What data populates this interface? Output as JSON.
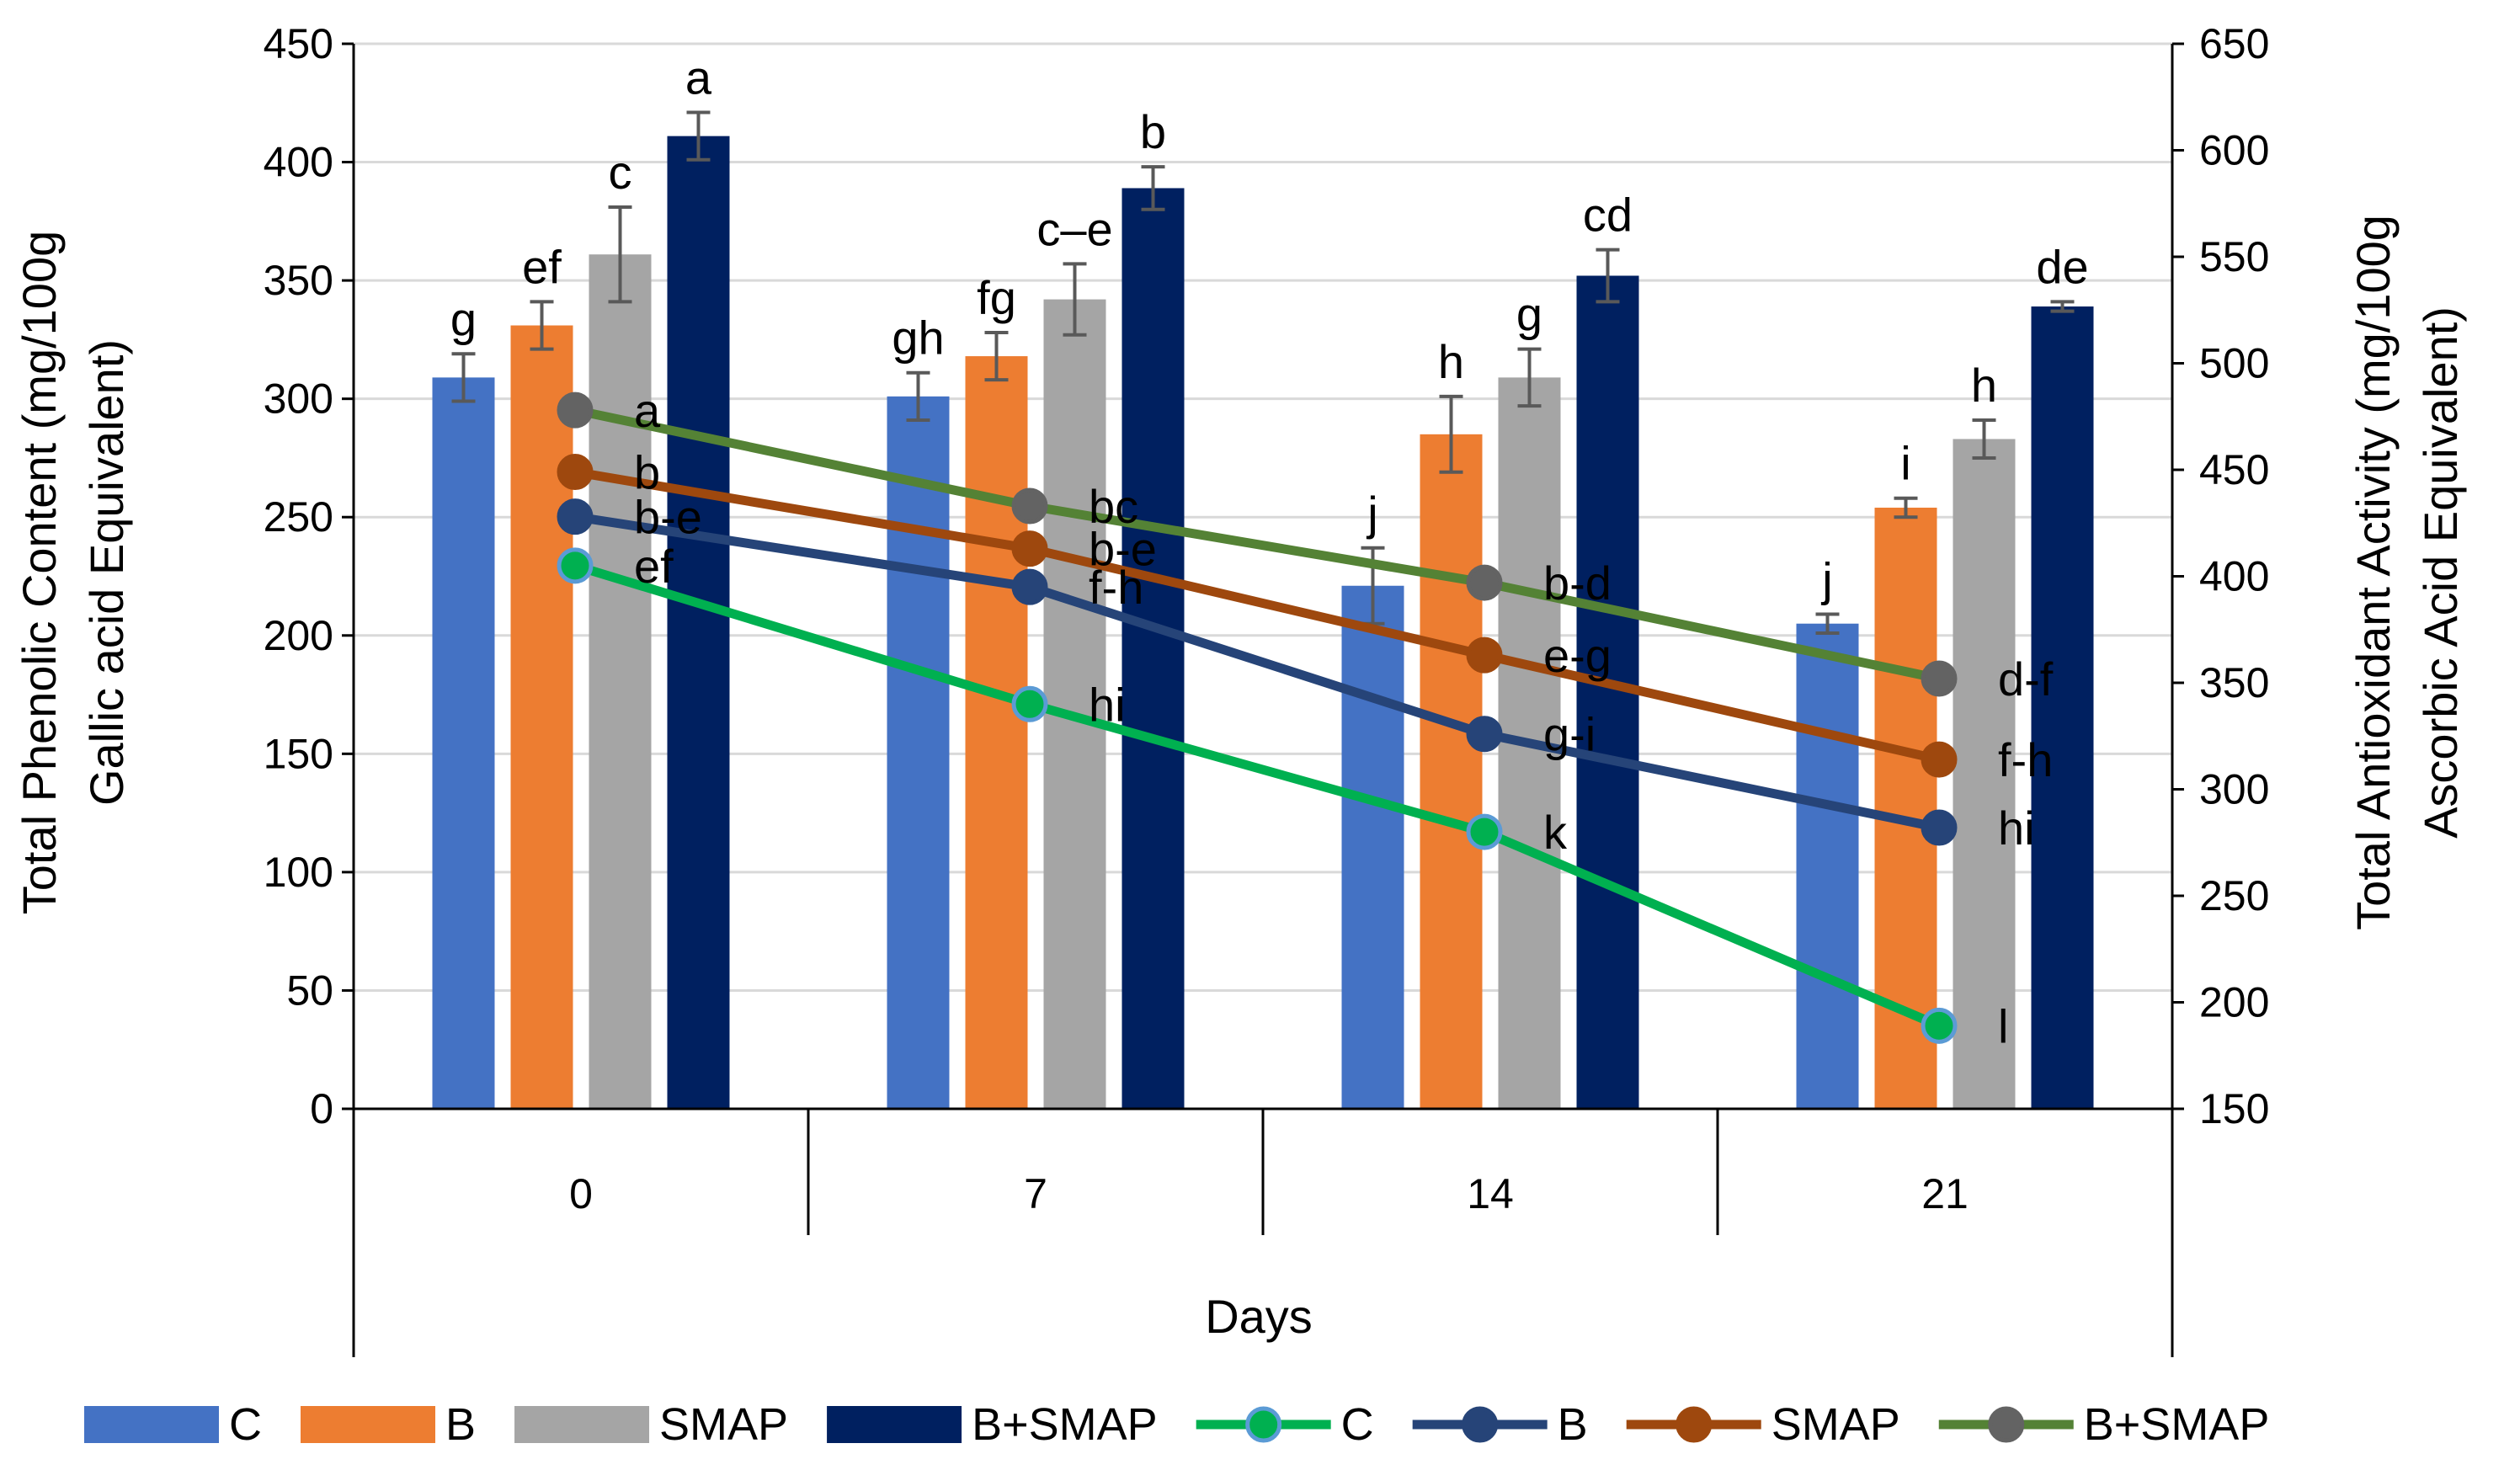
{
  "chart_data": {
    "type": "bar+line",
    "title": "",
    "categories": [
      "0",
      "7",
      "14",
      "21"
    ],
    "xlabel": "Days",
    "ylabel_left": [
      "Total Phenolic Content (mg/100g",
      "Gallic acid Equivalent)"
    ],
    "ylabel_right": [
      "Total Antioxidant Activity (mg/100g",
      "Ascorbic Acid Equivalent)"
    ],
    "ylim_left": [
      0,
      450
    ],
    "yticks_left": [
      0,
      50,
      100,
      150,
      200,
      250,
      300,
      350,
      400,
      450
    ],
    "yticks_left_labels": [
      "0",
      "50",
      "100",
      "150",
      "200",
      "250",
      "300",
      "350",
      "400",
      "450"
    ],
    "ylim_right": [
      150,
      650
    ],
    "yticks_right": [
      150,
      200,
      250,
      300,
      350,
      400,
      450,
      500,
      550,
      600,
      650
    ],
    "yticks_right_labels": [
      "150",
      "200",
      "250",
      "300",
      "350",
      "400",
      "450",
      "500",
      "550",
      "600",
      "650"
    ],
    "grid": true,
    "legend_position": "bottom",
    "bar_series": [
      {
        "name": "C",
        "color": "#4472C4",
        "values": [
          309,
          301,
          221,
          205
        ],
        "errors": [
          10,
          10,
          16,
          4
        ],
        "labels": [
          "g",
          "gh",
          "j",
          "j"
        ]
      },
      {
        "name": "B",
        "color": "#ED7D31",
        "values": [
          331,
          318,
          285,
          254
        ],
        "errors": [
          10,
          10,
          16,
          4
        ],
        "labels": [
          "ef",
          "fg",
          "h",
          "i"
        ]
      },
      {
        "name": "SMAP",
        "color": "#A5A5A5",
        "values": [
          361,
          342,
          309,
          283
        ],
        "errors": [
          20,
          15,
          12,
          8
        ],
        "labels": [
          "c",
          "c–e",
          "g",
          "h"
        ]
      },
      {
        "name": "B+SMAP",
        "color": "#002060",
        "values": [
          411,
          389,
          352,
          339
        ],
        "errors": [
          10,
          9,
          11,
          2
        ],
        "labels": [
          "a",
          "b",
          "cd",
          "de"
        ]
      }
    ],
    "line_series": [
      {
        "name": "C",
        "color": "#00B050",
        "marker_fill": "#00B050",
        "marker_edge": "#5B9BD5",
        "values": [
          405,
          340,
          280,
          189
        ],
        "labels": [
          "ef",
          "hi",
          "k",
          "l"
        ]
      },
      {
        "name": "B",
        "color": "#264478",
        "marker_fill": "#264478",
        "marker_edge": "#264478",
        "values": [
          428,
          395,
          326,
          282
        ],
        "labels": [
          "b-e",
          "f-h",
          "g-i",
          "hi"
        ]
      },
      {
        "name": "SMAP",
        "color": "#9E480E",
        "marker_fill": "#9E480E",
        "marker_edge": "#9E480E",
        "values": [
          449,
          413,
          363,
          314
        ],
        "labels": [
          "b",
          "b-e",
          "e-g",
          "f-h"
        ]
      },
      {
        "name": "B+SMAP",
        "color": "#548235",
        "marker_fill": "#636363",
        "marker_edge": "#636363",
        "values": [
          478,
          433,
          397,
          352
        ],
        "labels": [
          "a",
          "bc",
          "b-d",
          "d-f"
        ]
      }
    ],
    "legend": [
      "C",
      "B",
      "SMAP",
      "B+SMAP",
      "C",
      "B",
      "SMAP",
      "B+SMAP"
    ]
  }
}
